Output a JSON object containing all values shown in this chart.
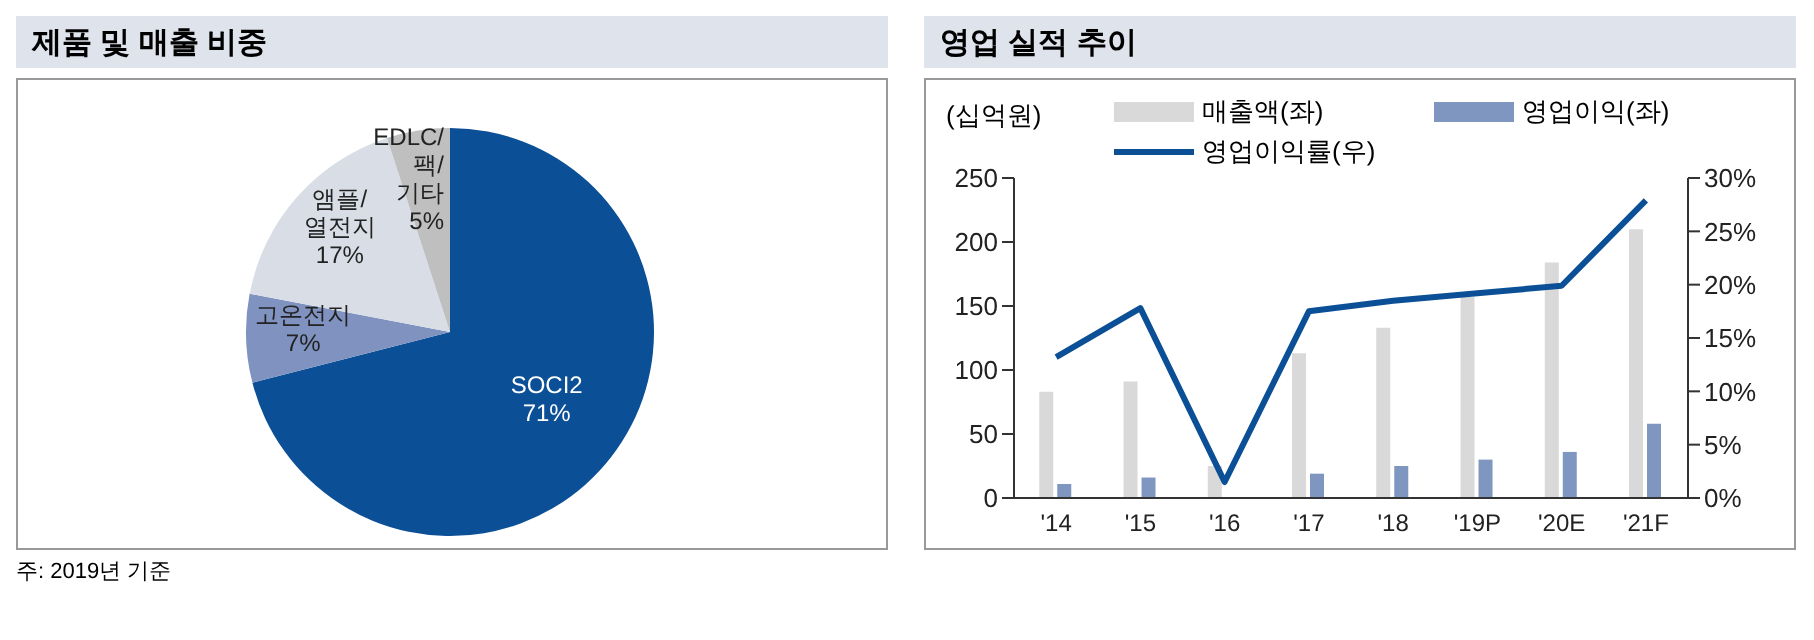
{
  "chart_data": [
    {
      "type": "pie",
      "title": "제품 및 매출 비중",
      "categories": [
        "SOCI2",
        "고온전지",
        "앰플/열전지",
        "EDLC/팩/기타"
      ],
      "values": [
        71,
        7,
        17,
        5
      ],
      "colors": [
        "#0b4f96",
        "#7f92c0",
        "#d9dee6",
        "#bfbfbf"
      ],
      "value_labels": [
        "71%",
        "7%",
        "17%",
        "5%"
      ],
      "annotations": [
        "주: 2019년 기준"
      ]
    },
    {
      "type": "bar",
      "title": "영업 실적 추이",
      "ylabel": "(십억원)",
      "categories": [
        "'14",
        "'15",
        "'16",
        "'17",
        "'18",
        "'19P",
        "'20E",
        "'21F"
      ],
      "series": [
        {
          "name": "매출액(좌)",
          "type": "bar",
          "color": "#d9d9d9",
          "values": [
            83,
            91,
            25,
            113,
            133,
            157,
            184,
            210
          ]
        },
        {
          "name": "영업이익(좌)",
          "type": "bar",
          "color": "#7f96c0",
          "values": [
            11,
            16,
            null,
            19,
            25,
            30,
            36,
            58
          ]
        },
        {
          "name": "영업이익률(우)",
          "type": "line",
          "axis": "y2",
          "color": "#0b4f96",
          "values": [
            13.2,
            17.8,
            1.5,
            17.5,
            18.5,
            19.2,
            19.9,
            27.9
          ]
        }
      ],
      "ylim": [
        0,
        250
      ],
      "yticks": [
        0,
        50,
        100,
        150,
        200,
        250
      ],
      "y2lim": [
        0,
        30
      ],
      "y2ticks": [
        {
          "value": 0,
          "label": "0%"
        },
        {
          "value": 5,
          "label": "5%"
        },
        {
          "value": 10,
          "label": "10%"
        },
        {
          "value": 15,
          "label": "15%"
        },
        {
          "value": 20,
          "label": "20%"
        },
        {
          "value": 25,
          "label": "25%"
        },
        {
          "value": 30,
          "label": "30%"
        }
      ],
      "grid": false,
      "legend": "top",
      "marker": "none",
      "line_style": "solid"
    }
  ]
}
